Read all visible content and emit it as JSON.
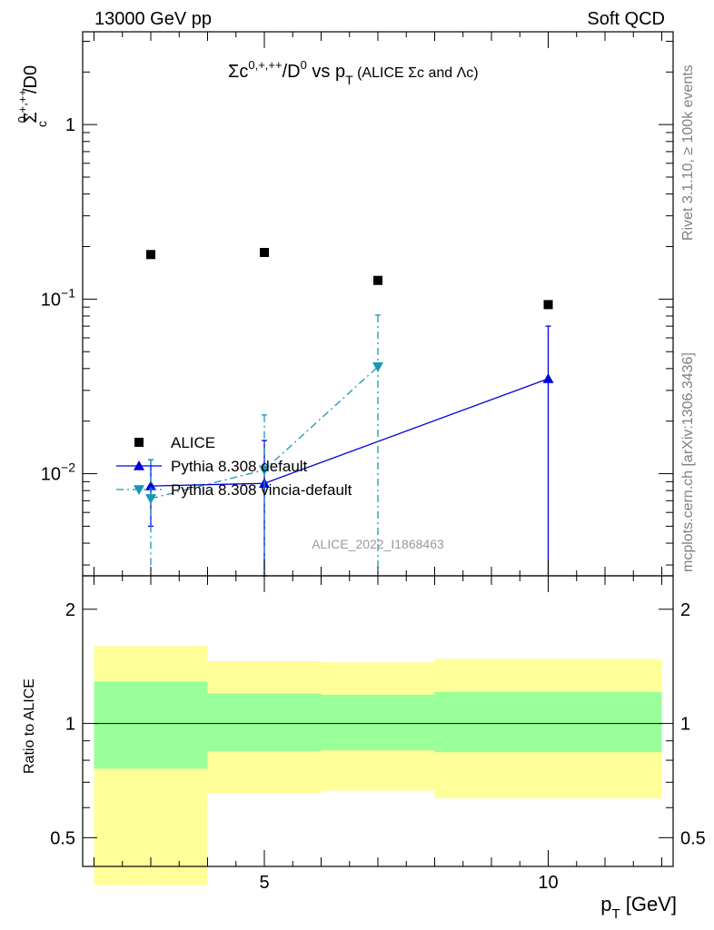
{
  "header": {
    "left": "13000 GeV pp",
    "right": "Soft QCD"
  },
  "side_notes": {
    "rivet": "Rivet 3.1.10, ≥ 100k events",
    "mcplots": "mcplots.cern.ch [arXiv:1306.3436]"
  },
  "watermark": "ALICE_2022_I1868463",
  "title": {
    "a": "Σc",
    "a_sup": "0,+,++",
    "b": "/D",
    "b_sup": "0",
    "c": " vs p",
    "c_sub": "T",
    "d": " (ALICE Σc and Λc)"
  },
  "ylabel_top": {
    "main": "Σ",
    "sup": "0,+,++",
    "sub": "c",
    "rest": "/D0"
  },
  "ylabel_bottom": "Ratio to ALICE",
  "xlabel": {
    "main": "p",
    "sub": "T",
    "rest": " [GeV]"
  },
  "chart_data": [
    {
      "type": "scatter",
      "panel": "main",
      "yscale": "log",
      "xlim": [
        1.8,
        12.2
      ],
      "ylim": [
        0.0026,
        3.4
      ],
      "ytick_labels": [
        {
          "value": 1,
          "text": "1"
        },
        {
          "value": 0.1,
          "base": "10",
          "exp": "−1"
        },
        {
          "value": 0.01,
          "base": "10",
          "exp": "−2"
        }
      ],
      "legend_position": "lower-left",
      "series": [
        {
          "name": "ALICE",
          "color": "#000000",
          "marker": "square",
          "x": [
            3,
            5,
            7,
            10
          ],
          "y": [
            0.18,
            0.185,
            0.128,
            0.093
          ]
        },
        {
          "name": "Pythia 8.308 default",
          "color": "#0000dd",
          "marker": "triangle-up",
          "line": "solid",
          "x": [
            3,
            5,
            10
          ],
          "y": [
            0.0085,
            0.0088,
            0.035
          ],
          "yerr_low": [
            0.0035,
            0.0062,
            0.0326
          ],
          "yerr_high": [
            0.0035,
            0.0067,
            0.035
          ]
        },
        {
          "name": "Pythia 8.308 vincia-default",
          "color": "#1797b5",
          "marker": "triangle-down",
          "line": "dashdot",
          "x": [
            3,
            5,
            7
          ],
          "y": [
            0.0072,
            0.0105,
            0.041
          ],
          "yerr_low": [
            0.0046,
            0.008,
            0.0385
          ],
          "yerr_high": [
            0.0048,
            0.0112,
            0.04
          ]
        }
      ]
    },
    {
      "type": "area",
      "panel": "ratio",
      "yscale": "log",
      "xlim": [
        1.8,
        12.2
      ],
      "ylim": [
        0.42,
        2.45
      ],
      "xticks": [
        5,
        10
      ],
      "yticks": [
        0.5,
        1,
        2
      ],
      "bands": [
        {
          "x0": 2,
          "x1": 4,
          "inner": [
            0.76,
            1.29
          ],
          "outer": [
            0.375,
            1.6
          ]
        },
        {
          "x0": 4,
          "x1": 6,
          "inner": [
            0.845,
            1.2
          ],
          "outer": [
            0.655,
            1.46
          ]
        },
        {
          "x0": 6,
          "x1": 8,
          "inner": [
            0.85,
            1.19
          ],
          "outer": [
            0.665,
            1.45
          ]
        },
        {
          "x0": 8,
          "x1": 12,
          "inner": [
            0.84,
            1.21
          ],
          "outer": [
            0.635,
            1.48
          ]
        }
      ],
      "colors": {
        "inner": "#99ff99",
        "outer": "#ffff99"
      },
      "reference": 1
    }
  ]
}
